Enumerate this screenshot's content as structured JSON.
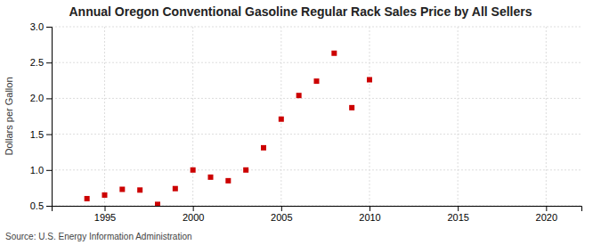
{
  "chart_data": {
    "type": "scatter",
    "title": "Annual Oregon Conventional Gasoline Regular Rack Sales Price by All Sellers",
    "ylabel": "Dollars per Gallon",
    "annotation": "Source: U.S. Energy Information Administration",
    "x": [
      1994,
      1995,
      1996,
      1997,
      1998,
      1999,
      2000,
      2001,
      2002,
      2003,
      2004,
      2005,
      2006,
      2007,
      2008,
      2009,
      2010
    ],
    "values": [
      0.6,
      0.65,
      0.73,
      0.72,
      0.52,
      0.74,
      1.0,
      0.9,
      0.85,
      1.0,
      1.31,
      1.71,
      2.04,
      2.24,
      2.63,
      1.87,
      2.26
    ],
    "color": "#cc0000",
    "marker": "square",
    "xlim": [
      1992,
      2022
    ],
    "ylim": [
      0.5,
      3.0
    ],
    "xticks": [
      1995,
      2000,
      2005,
      2010,
      2015,
      2020
    ],
    "yticks": [
      0.5,
      {
        "value": 1.0,
        "label": "1.0"
      },
      1.5,
      {
        "value": 2.0,
        "label": "2.0"
      },
      2.5,
      {
        "value": 3.0,
        "label": "3.0"
      }
    ],
    "grid": true
  }
}
